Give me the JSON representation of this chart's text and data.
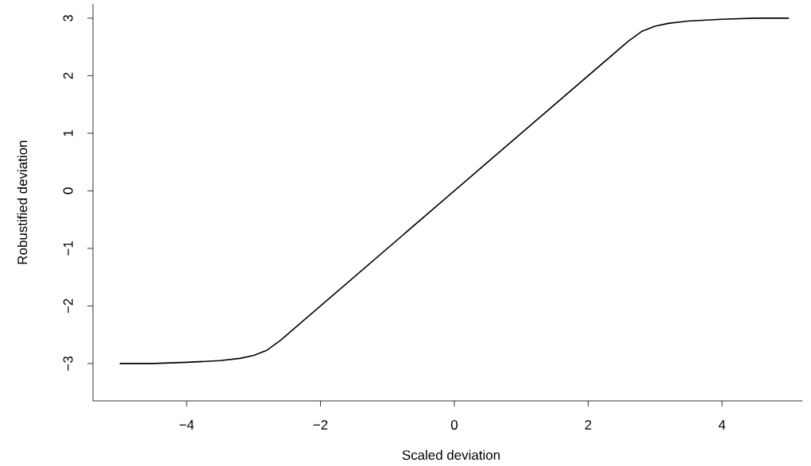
{
  "chart_data": {
    "type": "line",
    "xlabel": "Scaled deviation",
    "ylabel": "Robustified deviation",
    "x": [
      -5,
      -4.5,
      -4,
      -3.5,
      -3.2,
      -3,
      -2.8,
      -2.6,
      2.6,
      2.8,
      3,
      3.2,
      3.5,
      4,
      4.5,
      5
    ],
    "series": [
      {
        "color": "#000000",
        "values": [
          -3,
          -3,
          -2.98,
          -2.95,
          -2.91,
          -2.86,
          -2.77,
          -2.6,
          2.6,
          2.77,
          2.86,
          2.91,
          2.95,
          2.98,
          3,
          3
        ]
      }
    ],
    "xlim": [
      -5.4,
      5.2
    ],
    "ylim": [
      -3.65,
      3.25
    ],
    "xticks": [
      {
        "value": -4,
        "label": "−4"
      },
      {
        "value": -2,
        "label": "−2"
      },
      0,
      2,
      4
    ],
    "yticks": [
      {
        "value": -3,
        "label": "−3"
      },
      {
        "value": -2,
        "label": "−2"
      },
      {
        "value": -1,
        "label": "−1"
      },
      0,
      1,
      2,
      3
    ],
    "marker": "none",
    "line_style": "solid"
  }
}
